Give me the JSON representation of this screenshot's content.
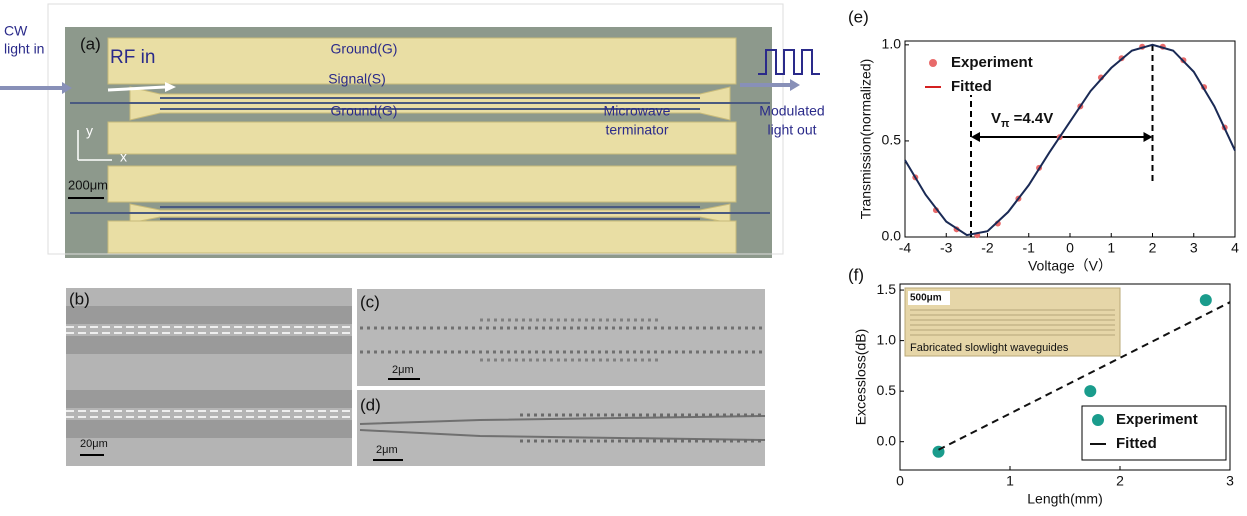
{
  "panels": {
    "a": {
      "label": "(a)",
      "input": [
        "CW",
        "light in"
      ],
      "rf": "RF in",
      "ground_top": "Ground(G)",
      "signal": "Signal(S)",
      "ground_bottom": "Ground(G)",
      "terminator": [
        "Microwave",
        "terminator"
      ],
      "output": [
        "Modulated",
        "light out"
      ],
      "axis_y": "y",
      "axis_x": "x",
      "scale": "200μm"
    },
    "b": {
      "label": "(b)",
      "scale": "20μm"
    },
    "c": {
      "label": "(c)",
      "scale": "2μm"
    },
    "d": {
      "label": "(d)",
      "scale": "2μm"
    }
  },
  "chart_data": [
    {
      "type": "scatter",
      "title": "(e)",
      "x_label": "Voltage（V）",
      "y_label": "Transmission(normalized)",
      "xlim": [
        -4,
        4
      ],
      "xticks": [
        -4,
        -3,
        -2,
        -1,
        0,
        1,
        2,
        3,
        4
      ],
      "ylim": [
        0,
        1.02
      ],
      "yticks": [
        {
          "value": 0,
          "label": "0.0"
        },
        {
          "value": 0.5,
          "label": "0.5"
        },
        {
          "value": 1,
          "label": "1.0"
        }
      ],
      "legend": "upper left",
      "annotation": {
        "main": "V",
        "sub": "π",
        "rest": " =4.4V"
      },
      "vlines": [
        -2.4,
        2
      ],
      "series": [
        {
          "name": "Experiment",
          "style": "markers",
          "color": "#e86a6a",
          "x": [
            -3.75,
            -3.25,
            -2.75,
            -2.25,
            -1.75,
            -1.25,
            -0.75,
            -0.25,
            0.25,
            0.75,
            1.25,
            1.75,
            2.25,
            2.75,
            3.25,
            3.75
          ],
          "values": [
            0.31,
            0.14,
            0.04,
            0.01,
            0.07,
            0.2,
            0.36,
            0.52,
            0.68,
            0.83,
            0.93,
            0.99,
            0.99,
            0.92,
            0.78,
            0.57
          ]
        },
        {
          "name": "Fitted",
          "style": "solid",
          "color": "#1a2a55",
          "legend_color": "#d42020",
          "x": [
            -4,
            -3.5,
            -3,
            -2.5,
            -2,
            -1.5,
            -1,
            -0.5,
            0,
            0.5,
            1,
            1.5,
            2,
            2.5,
            3,
            3.5,
            4
          ],
          "values": [
            0.4,
            0.22,
            0.08,
            0.01,
            0.03,
            0.13,
            0.27,
            0.44,
            0.6,
            0.76,
            0.88,
            0.97,
            1,
            0.97,
            0.86,
            0.68,
            0.45
          ]
        }
      ]
    },
    {
      "type": "scatter",
      "title": "(f)",
      "x_label": "Length(mm)",
      "y_label": "Excessloss(dB)",
      "xlim": [
        0,
        3
      ],
      "xticks": [
        0,
        1,
        2,
        3
      ],
      "ylim": [
        -0.28,
        1.56
      ],
      "yticks": [
        {
          "value": 0,
          "label": "0.0"
        },
        {
          "value": 0.5,
          "label": "0.5"
        },
        {
          "value": 1,
          "label": "1.0"
        },
        {
          "value": 1.5,
          "label": "1.5"
        }
      ],
      "legend": "lower right",
      "inset": {
        "scale": "500μm",
        "caption": "Fabricated slowlight  waveguides"
      },
      "series": [
        {
          "name": "Experiment",
          "style": "markers",
          "color": "#1a9c8c",
          "x": [
            0.35,
            1.73,
            2.78
          ],
          "values": [
            -0.1,
            0.5,
            1.4
          ]
        },
        {
          "name": "Fitted",
          "style": "dashed",
          "color": "#111111",
          "x": [
            0.35,
            3
          ],
          "values": [
            -0.08,
            1.38
          ]
        }
      ]
    }
  ]
}
